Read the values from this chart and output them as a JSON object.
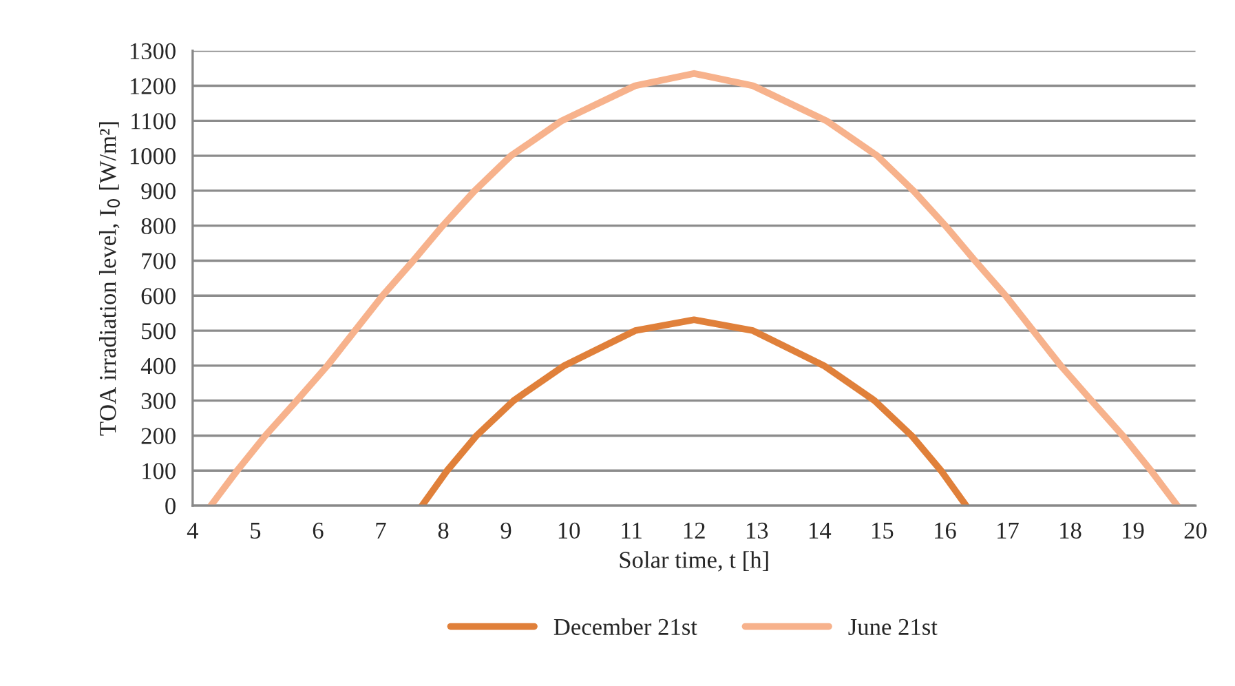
{
  "chart_data": {
    "type": "line",
    "xlabel": "Solar time, t [h]",
    "ylabel": "TOA irradiation level, I$_{0}$ [W/m²]",
    "xlim": [
      4,
      20
    ],
    "xticks": [
      4,
      5,
      6,
      7,
      8,
      9,
      10,
      11,
      12,
      13,
      14,
      15,
      16,
      17,
      18,
      19,
      20
    ],
    "ylim": [
      0,
      1300
    ],
    "yticks": [
      0,
      100,
      200,
      300,
      400,
      500,
      600,
      700,
      800,
      900,
      1000,
      1100,
      1200,
      1300
    ],
    "grid": "y",
    "legend": "bottom",
    "marker": "none",
    "line_style": "solid",
    "series": [
      {
        "name": "December 21st",
        "color": "#e0803a",
        "x": [
          7.66,
          8.06,
          8.53,
          9.12,
          9.93,
          11.06,
          12,
          12.94,
          14.07,
          14.88,
          15.47,
          15.94,
          16.34
        ],
        "values": [
          0,
          100,
          200,
          300,
          400,
          500,
          531,
          500,
          400,
          300,
          200,
          100,
          0
        ]
      },
      {
        "name": "June 21st",
        "color": "#f7b28c",
        "x": [
          4.29,
          4.71,
          5.16,
          5.66,
          6.15,
          6.59,
          7.03,
          7.52,
          7.99,
          8.5,
          9.08,
          9.89,
          11.06,
          12,
          12.94,
          14.11,
          14.92,
          15.5,
          16.01,
          16.48,
          16.97,
          17.41,
          17.85,
          18.34,
          18.84,
          19.29,
          19.71
        ],
        "values": [
          0,
          100,
          200,
          300,
          400,
          500,
          600,
          700,
          800,
          900,
          1000,
          1100,
          1200,
          1235,
          1200,
          1100,
          1000,
          900,
          800,
          700,
          600,
          500,
          400,
          300,
          200,
          100,
          0
        ]
      }
    ]
  }
}
